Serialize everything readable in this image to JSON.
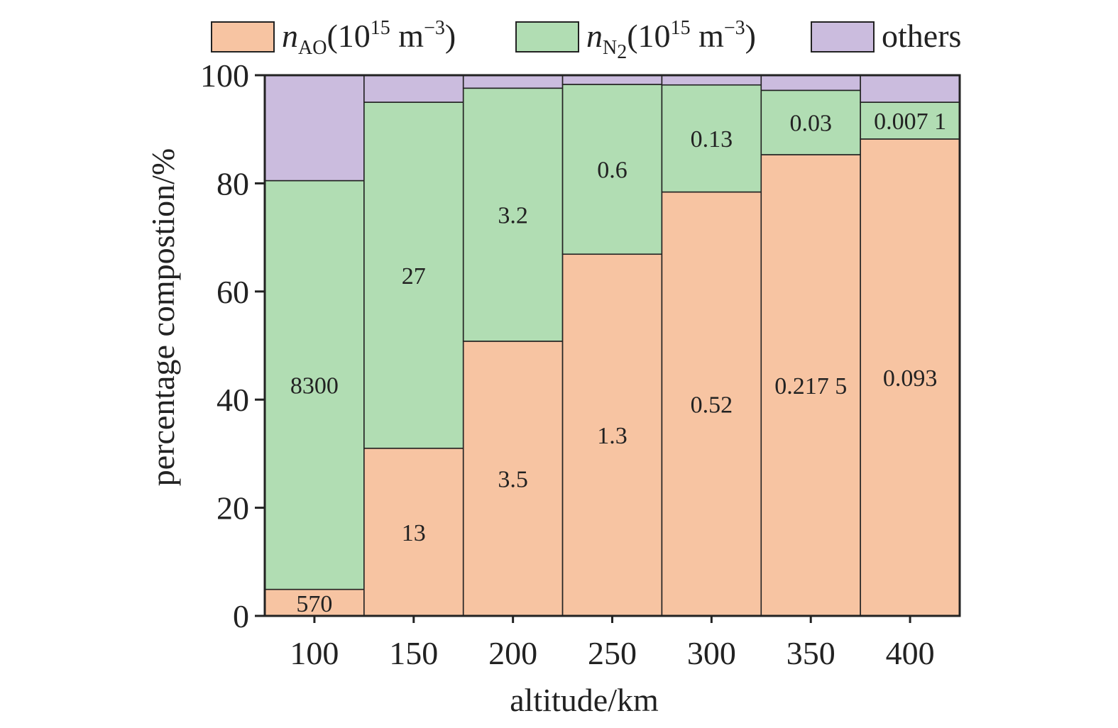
{
  "chart_data": {
    "type": "bar",
    "stacked": true,
    "title": "",
    "xlabel": "altitude/km",
    "ylabel": "percentage compostion/%",
    "categories": [
      "100",
      "150",
      "200",
      "250",
      "300",
      "350",
      "400"
    ],
    "ylim": [
      0,
      100
    ],
    "yticks": [
      "0",
      "20",
      "40",
      "60",
      "80",
      "100"
    ],
    "grid": false,
    "legend_position": "top",
    "series": [
      {
        "key": "ao",
        "legend_symbol": "n",
        "legend_subscript": "AO",
        "legend_unit_base": "(10",
        "legend_unit_exp": "15",
        "legend_unit_mid": " m",
        "legend_unit_exp2": "−3",
        "legend_unit_close": ")",
        "color": "#F7C4A2",
        "values": [
          4.9,
          31.0,
          50.8,
          66.9,
          78.4,
          85.3,
          88.2
        ],
        "labels": [
          "570",
          "13",
          "3.5",
          "1.3",
          "0.52",
          "0.217 5",
          "0.093"
        ]
      },
      {
        "key": "n2",
        "legend_symbol": "n",
        "legend_subscript": "N",
        "legend_subscript2": "2",
        "legend_unit_base": "(10",
        "legend_unit_exp": "15",
        "legend_unit_mid": " m",
        "legend_unit_exp2": "−3",
        "legend_unit_close": ")",
        "color": "#B1DDB3",
        "values": [
          75.6,
          64.0,
          46.8,
          31.4,
          19.8,
          11.9,
          6.8
        ],
        "labels": [
          "8300",
          "27",
          "3.2",
          "0.6",
          "0.13",
          "0.03",
          "0.007 1"
        ]
      },
      {
        "key": "others",
        "legend_text": "others",
        "color": "#CBBCDE",
        "values": [
          19.5,
          5.0,
          2.4,
          1.7,
          1.8,
          2.8,
          5.0
        ],
        "labels": []
      }
    ]
  }
}
